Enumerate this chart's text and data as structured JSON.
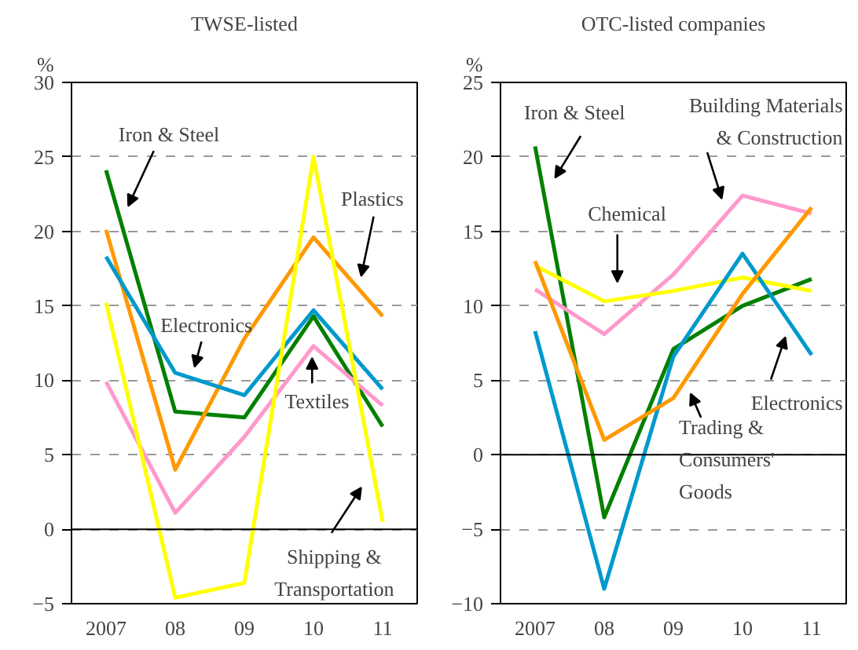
{
  "chart_data": [
    {
      "type": "line",
      "title": "TWSE-listed",
      "ylabel": "%",
      "categories": [
        "2007",
        "08",
        "09",
        "10",
        "11"
      ],
      "ylim": [
        -5,
        30
      ],
      "yticks": [
        -5,
        0,
        5,
        10,
        15,
        20,
        25,
        30
      ],
      "grid": "y",
      "legend": false,
      "marker": "none",
      "line_style": "solid",
      "ref_lines": [
        {
          "axis": "y",
          "value": 0,
          "color": "#000000",
          "line_style": "solid"
        }
      ],
      "series": [
        {
          "name": "Iron & Steel",
          "color": "#008000",
          "values": [
            24.1,
            7.9,
            7.5,
            14.3,
            6.9
          ]
        },
        {
          "name": "Plastics",
          "color": "#ff9900",
          "values": [
            20.1,
            4.0,
            12.8,
            19.6,
            14.3
          ]
        },
        {
          "name": "Electronics",
          "color": "#0099cc",
          "values": [
            18.3,
            10.5,
            9.0,
            14.7,
            9.4
          ]
        },
        {
          "name": "Textiles",
          "color": "#ff99cc",
          "values": [
            9.9,
            1.1,
            6.2,
            12.3,
            8.3
          ]
        },
        {
          "name": "Shipping & Transportation",
          "color": "#ffff00",
          "values": [
            15.2,
            -4.6,
            -3.6,
            25.0,
            0.5
          ]
        }
      ]
    },
    {
      "type": "line",
      "title": "OTC-listed companies",
      "ylabel": "%",
      "categories": [
        "2007",
        "08",
        "09",
        "10",
        "11"
      ],
      "ylim": [
        -10,
        25
      ],
      "yticks": [
        -10,
        -5,
        0,
        5,
        10,
        15,
        20,
        25
      ],
      "grid": "y",
      "legend": false,
      "marker": "none",
      "line_style": "solid",
      "ref_lines": [
        {
          "axis": "y",
          "value": 0,
          "color": "#000000",
          "line_style": "solid"
        }
      ],
      "series": [
        {
          "name": "Iron & Steel",
          "color": "#008000",
          "values": [
            20.7,
            -4.2,
            7.1,
            10.0,
            11.8
          ]
        },
        {
          "name": "Building Materials & Construction",
          "color": "#ff99cc",
          "values": [
            11.1,
            8.1,
            12.1,
            17.4,
            16.2
          ]
        },
        {
          "name": "Chemical",
          "color": "#ffff00",
          "values": [
            12.7,
            10.3,
            11.0,
            11.9,
            11.0
          ]
        },
        {
          "name": "Electronics",
          "color": "#0099cc",
          "values": [
            8.3,
            -9.0,
            6.6,
            13.5,
            6.7
          ]
        },
        {
          "name": "Trading & Consumers' Goods",
          "color": "#ff9900",
          "values": [
            13.0,
            1.0,
            3.8,
            10.8,
            16.6
          ]
        }
      ]
    }
  ]
}
